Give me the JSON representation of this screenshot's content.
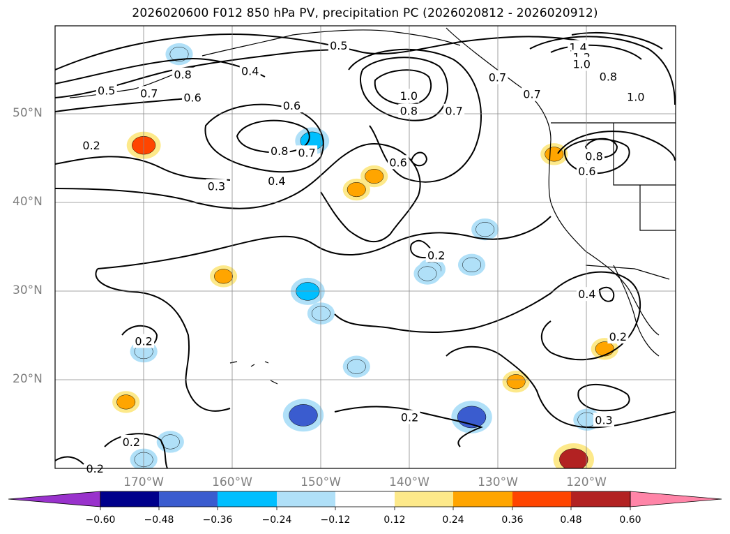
{
  "title": "2026020600 F012 850 hPa PV, precipitation PC (2026020812 - 2026020912)",
  "latitude_labels": [
    {
      "text": "50°N",
      "lat": 50
    },
    {
      "text": "40°N",
      "lat": 40
    },
    {
      "text": "30°N",
      "lat": 30
    },
    {
      "text": "20°N",
      "lat": 20
    }
  ],
  "longitude_labels": [
    {
      "text": "170°W",
      "lon": -170
    },
    {
      "text": "160°W",
      "lon": -160
    },
    {
      "text": "150°W",
      "lon": -150
    },
    {
      "text": "140°W",
      "lon": -140
    },
    {
      "text": "130°W",
      "lon": -130
    },
    {
      "text": "120°W",
      "lon": -120
    }
  ],
  "colorbar": {
    "ticks": [
      "−0.60",
      "−0.48",
      "−0.36",
      "−0.24",
      "−0.12",
      "0.12",
      "0.24",
      "0.36",
      "0.48",
      "0.60"
    ],
    "colors": [
      "#9932cc",
      "#00008b",
      "#3a5ccf",
      "#00bfff",
      "#b0e0f8",
      "#ffffff",
      "#fde98a",
      "#ffa500",
      "#ff4500",
      "#b22222",
      "#ff85a8"
    ]
  },
  "contour_labels": [
    {
      "text": "0.5",
      "lon": -148.0,
      "lat": 57.8
    },
    {
      "text": "1.4",
      "lon": -121.0,
      "lat": 57.6
    },
    {
      "text": "1.2",
      "lon": -120.6,
      "lat": 56.5
    },
    {
      "text": "1.0",
      "lon": -120.6,
      "lat": 55.7
    },
    {
      "text": "0.8",
      "lon": -117.6,
      "lat": 54.3
    },
    {
      "text": "0.8",
      "lon": -165.6,
      "lat": 54.5
    },
    {
      "text": "0.4",
      "lon": -158.0,
      "lat": 54.9
    },
    {
      "text": "0.7",
      "lon": -130.1,
      "lat": 54.2
    },
    {
      "text": "0.5",
      "lon": -174.2,
      "lat": 52.7
    },
    {
      "text": "0.7",
      "lon": -169.4,
      "lat": 52.4
    },
    {
      "text": "0.6",
      "lon": -164.5,
      "lat": 51.9
    },
    {
      "text": "1.0",
      "lon": -140.1,
      "lat": 52.1
    },
    {
      "text": "0.7",
      "lon": -126.2,
      "lat": 52.3
    },
    {
      "text": "1.0",
      "lon": -114.5,
      "lat": 52.0
    },
    {
      "text": "0.8",
      "lon": -140.1,
      "lat": 50.4
    },
    {
      "text": "0.7",
      "lon": -135.0,
      "lat": 50.4
    },
    {
      "text": "0.6",
      "lon": -153.3,
      "lat": 51.0
    },
    {
      "text": "0.2",
      "lon": -175.9,
      "lat": 46.5
    },
    {
      "text": "0.8",
      "lon": -154.7,
      "lat": 45.9
    },
    {
      "text": "0.7",
      "lon": -151.6,
      "lat": 45.7
    },
    {
      "text": "0.6",
      "lon": -141.3,
      "lat": 44.6
    },
    {
      "text": "0.8",
      "lon": -119.2,
      "lat": 45.3
    },
    {
      "text": "0.6",
      "lon": -120.0,
      "lat": 43.6
    },
    {
      "text": "0.3",
      "lon": -161.8,
      "lat": 41.9
    },
    {
      "text": "0.4",
      "lon": -155.0,
      "lat": 42.5
    },
    {
      "text": "0.2",
      "lon": -137.0,
      "lat": 34.1
    },
    {
      "text": "0.4",
      "lon": -120.0,
      "lat": 29.7
    },
    {
      "text": "0.2",
      "lon": -170.0,
      "lat": 24.4
    },
    {
      "text": "0.2",
      "lon": -116.5,
      "lat": 24.9
    },
    {
      "text": "0.2",
      "lon": -140.0,
      "lat": 15.8
    },
    {
      "text": "0.3",
      "lon": -118.1,
      "lat": 15.5
    },
    {
      "text": "0.2",
      "lon": -171.4,
      "lat": 13.0
    },
    {
      "text": "0.2",
      "lon": -175.5,
      "lat": 10.0
    }
  ],
  "precipitation_patches": [
    {
      "lon": -170.0,
      "lat": 46.5,
      "value": 0.36
    },
    {
      "lon": -166.0,
      "lat": 56.8,
      "value": -0.24
    },
    {
      "lon": -151.0,
      "lat": 47.0,
      "value": -0.36
    },
    {
      "lon": -146.0,
      "lat": 41.5,
      "value": 0.24
    },
    {
      "lon": -144.0,
      "lat": 43.0,
      "value": 0.24
    },
    {
      "lon": -137.5,
      "lat": 32.5,
      "value": -0.24
    },
    {
      "lon": -133.0,
      "lat": 33.0,
      "value": -0.24
    },
    {
      "lon": -151.5,
      "lat": 30.0,
      "value": -0.36
    },
    {
      "lon": -150.0,
      "lat": 27.5,
      "value": -0.24
    },
    {
      "lon": -152.0,
      "lat": 16.0,
      "value": -0.48
    },
    {
      "lon": -133.0,
      "lat": 15.8,
      "value": -0.48
    },
    {
      "lon": -131.5,
      "lat": 37.0,
      "value": -0.24
    },
    {
      "lon": -123.7,
      "lat": 45.5,
      "value": 0.24
    },
    {
      "lon": -128.0,
      "lat": 19.8,
      "value": 0.24
    },
    {
      "lon": -121.5,
      "lat": 11.0,
      "value": 0.48
    },
    {
      "lon": -170.0,
      "lat": 11.0,
      "value": -0.24
    },
    {
      "lon": -120.0,
      "lat": 15.5,
      "value": -0.24
    },
    {
      "lon": -118.0,
      "lat": 23.5,
      "value": 0.24
    },
    {
      "lon": -146.0,
      "lat": 21.5,
      "value": -0.24
    },
    {
      "lon": -172.0,
      "lat": 17.5,
      "value": 0.24
    },
    {
      "lon": -167.0,
      "lat": 13.0,
      "value": -0.24
    },
    {
      "lon": -161.0,
      "lat": 31.7,
      "value": 0.24
    },
    {
      "lon": -170.0,
      "lat": 23.2,
      "value": -0.24
    },
    {
      "lon": -138.0,
      "lat": 32.0,
      "value": -0.24
    }
  ]
}
